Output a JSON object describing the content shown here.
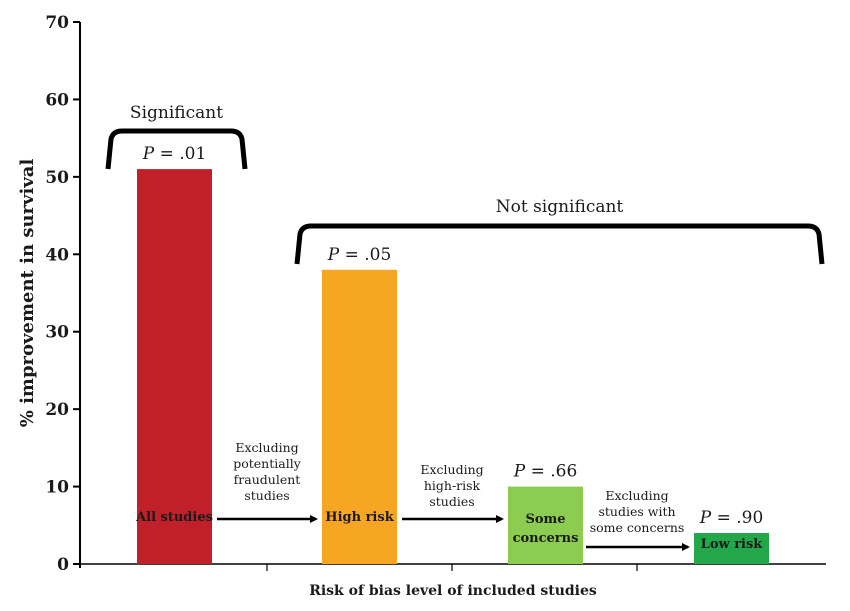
{
  "chart_data": {
    "type": "bar",
    "ylabel": "% improvement in survival",
    "xlabel": "Risk of bias level of included studies",
    "ylim": [
      0,
      70
    ],
    "yticks": [
      0,
      10,
      20,
      30,
      40,
      50,
      60,
      70
    ],
    "bars": [
      {
        "label": [
          "All studies"
        ],
        "value": 51,
        "p_text": ".01",
        "color": "#c0202a"
      },
      {
        "label": [
          "High risk"
        ],
        "value": 38,
        "p_text": ".05",
        "color": "#f6a623"
      },
      {
        "label": [
          "Some",
          "concerns"
        ],
        "value": 10,
        "p_text": ".66",
        "color": "#8ccc50"
      },
      {
        "label": [
          "Low risk"
        ],
        "value": 4,
        "p_text": ".90",
        "color": "#22a84a"
      }
    ],
    "p_prefix": "P",
    "p_equals": "=",
    "transitions": [
      [
        "Excluding",
        "potentially",
        "fraudulent",
        "studies"
      ],
      [
        "Excluding",
        "high-risk",
        "studies"
      ],
      [
        "Excluding",
        "studies with",
        "some concerns"
      ]
    ],
    "groups": [
      {
        "label": "Significant",
        "bars": [
          0,
          0
        ]
      },
      {
        "label": "Not significant",
        "bars": [
          1,
          3
        ]
      }
    ]
  }
}
